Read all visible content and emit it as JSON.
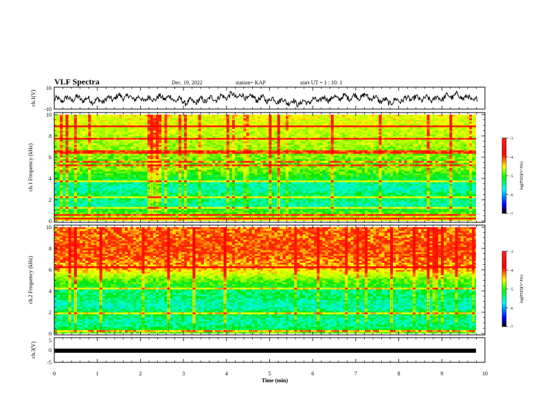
{
  "header": {
    "title": "VLF Spectra",
    "date": "Dec. 19, 2022",
    "station": "station= KAP",
    "start_ut": "start  UT =   1 : 10: 1"
  },
  "chart_data": [
    {
      "type": "line",
      "panel": "ch1-waveform",
      "ylabel": "ch.1(V)",
      "ylim": [
        -10,
        10
      ],
      "yticklabels": [
        "10",
        "-10"
      ],
      "xlim": [
        0,
        10
      ],
      "x_end": 9.83,
      "series": [
        {
          "values": [
            0,
            2,
            -1,
            4,
            1,
            3,
            -2,
            1,
            5,
            2,
            0,
            -3,
            1,
            3,
            4,
            -2,
            2,
            1,
            5,
            0
          ]
        }
      ]
    },
    {
      "type": "heatmap",
      "panel": "ch1-spectrogram",
      "ylabel": "ch.1  Frequency (kHz)",
      "ylim": [
        0,
        10
      ],
      "yticklabels": [
        "0",
        "2",
        "4",
        "6",
        "8",
        "10"
      ],
      "xlim": [
        0,
        10
      ],
      "x_end": 9.83,
      "colorbar": {
        "label": "log(PSD)(V²/Hz)",
        "range": [
          -7,
          -3
        ],
        "ticklabels": [
          "-3",
          "-4",
          "-5",
          "-6",
          "-7"
        ]
      },
      "frequency_profile_log_psd": [
        {
          "f": 0.0,
          "v": -4.3
        },
        {
          "f": 0.5,
          "v": -4.6
        },
        {
          "f": 1.0,
          "v": -5.0
        },
        {
          "f": 1.5,
          "v": -5.5
        },
        {
          "f": 2.0,
          "v": -5.3
        },
        {
          "f": 2.5,
          "v": -5.2
        },
        {
          "f": 3.0,
          "v": -5.5
        },
        {
          "f": 3.5,
          "v": -5.4
        },
        {
          "f": 4.0,
          "v": -5.1
        },
        {
          "f": 4.5,
          "v": -4.9
        },
        {
          "f": 5.0,
          "v": -4.6
        },
        {
          "f": 5.5,
          "v": -4.9
        },
        {
          "f": 6.0,
          "v": -4.7
        },
        {
          "f": 7.0,
          "v": -4.6
        },
        {
          "f": 8.0,
          "v": -4.5
        },
        {
          "f": 9.0,
          "v": -4.4
        },
        {
          "f": 10.0,
          "v": -4.3
        }
      ],
      "narrowband_lines_khz": [
        0.25,
        0.6,
        1.2,
        2.3,
        3.7,
        5.2,
        5.6,
        6.5,
        7.8,
        8.9
      ]
    },
    {
      "type": "heatmap",
      "panel": "ch2-spectrogram",
      "ylabel": "ch.2  Frequency (kHz)",
      "ylim": [
        0,
        10
      ],
      "yticklabels": [
        "0",
        "2",
        "4",
        "6",
        "8",
        "10"
      ],
      "xlim": [
        0,
        10
      ],
      "x_end": 9.83,
      "colorbar": {
        "label": "log(PSD)(V²/Hz)",
        "range": [
          -7,
          -3
        ],
        "ticklabels": [
          "-3",
          "-4",
          "-5",
          "-6",
          "-7"
        ]
      },
      "frequency_profile_log_psd": [
        {
          "f": 0.0,
          "v": -4.7
        },
        {
          "f": 0.5,
          "v": -5.2
        },
        {
          "f": 1.0,
          "v": -5.4
        },
        {
          "f": 1.5,
          "v": -5.3
        },
        {
          "f": 2.0,
          "v": -5.1
        },
        {
          "f": 2.5,
          "v": -5.5
        },
        {
          "f": 3.0,
          "v": -5.4
        },
        {
          "f": 3.5,
          "v": -5.2
        },
        {
          "f": 4.0,
          "v": -5.3
        },
        {
          "f": 4.5,
          "v": -5.0
        },
        {
          "f": 5.0,
          "v": -4.8
        },
        {
          "f": 5.5,
          "v": -4.5
        },
        {
          "f": 6.0,
          "v": -4.1
        },
        {
          "f": 7.0,
          "v": -3.9
        },
        {
          "f": 8.0,
          "v": -3.8
        },
        {
          "f": 9.0,
          "v": -3.9
        },
        {
          "f": 10.0,
          "v": -3.9
        }
      ],
      "narrowband_lines_khz": [
        0.3,
        1.9,
        4.2,
        6.3
      ]
    },
    {
      "type": "line",
      "panel": "ch3-signal",
      "ylabel": "ch.3(V)",
      "ylim": [
        -5,
        5
      ],
      "yticklabels": [
        "5",
        "0",
        "-5"
      ],
      "xlim": [
        0,
        10
      ],
      "x_end": 9.83,
      "series": [
        {
          "values": [
            0,
            0
          ]
        }
      ]
    }
  ],
  "xaxis": {
    "label": "Time  (min)",
    "ticklabels": [
      "0",
      "1",
      "2",
      "3",
      "4",
      "5",
      "6",
      "7",
      "8",
      "9",
      "10"
    ]
  },
  "colors": {
    "colormap": [
      "#000080",
      "#0000ff",
      "#00ffff",
      "#00ff00",
      "#ffff00",
      "#ff0000",
      "#ff0000"
    ]
  }
}
